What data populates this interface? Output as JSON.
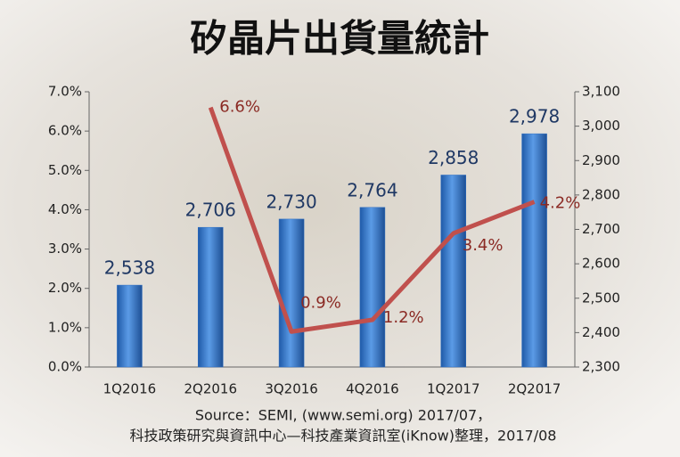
{
  "chart_data": {
    "type": "combo",
    "title": "矽晶片出貨量統計",
    "categories": [
      "1Q2016",
      "2Q2016",
      "3Q2016",
      "4Q2016",
      "1Q2017",
      "2Q2017"
    ],
    "series": [
      {
        "type": "bar",
        "axis": "y2",
        "color": "#2e6fc4",
        "values": [
          2538,
          2706,
          2730,
          2764,
          2858,
          2978
        ],
        "value_labels": [
          "2,538",
          "2,706",
          "2,730",
          "2,764",
          "2,858",
          "2,978"
        ]
      },
      {
        "type": "line",
        "axis": "y",
        "color": "#c0504d",
        "values": [
          null,
          6.6,
          0.9,
          1.2,
          3.4,
          4.2
        ],
        "value_labels": [
          null,
          "6.6%",
          "0.9%",
          "1.2%",
          "3.4%",
          "4.2%"
        ]
      }
    ],
    "ylim": [
      0,
      7
    ],
    "yticks": [
      {
        "value": 0,
        "label": "0.0%"
      },
      {
        "value": 1,
        "label": "1.0%"
      },
      {
        "value": 2,
        "label": "2.0%"
      },
      {
        "value": 3,
        "label": "3.0%"
      },
      {
        "value": 4,
        "label": "4.0%"
      },
      {
        "value": 5,
        "label": "5.0%"
      },
      {
        "value": 6,
        "label": "6.0%"
      },
      {
        "value": 7,
        "label": "7.0%"
      }
    ],
    "y2lim": [
      2300,
      3100
    ],
    "y2ticks": [
      {
        "value": 2300,
        "label": "2,300"
      },
      {
        "value": 2400,
        "label": "2,400"
      },
      {
        "value": 2500,
        "label": "2,500"
      },
      {
        "value": 2600,
        "label": "2,600"
      },
      {
        "value": 2700,
        "label": "2,700"
      },
      {
        "value": 2800,
        "label": "2,800"
      },
      {
        "value": 2900,
        "label": "2,900"
      },
      {
        "value": 3000,
        "label": "3,000"
      },
      {
        "value": 3100,
        "label": "3,100"
      }
    ],
    "source": [
      "Source：SEMI, (www.semi.org) 2017/07，",
      "科技政策研究與資訊中心—科技產業資訊室(iKnow)整理，2017/08"
    ]
  }
}
